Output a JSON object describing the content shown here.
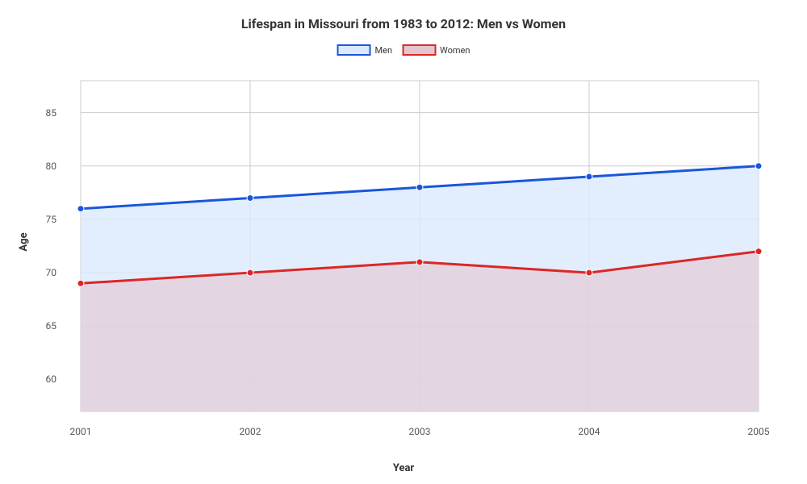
{
  "chart": {
    "type": "line-area",
    "title": "Lifespan in Missouri from 1983 to 2012: Men vs Women",
    "title_fontsize": 16,
    "xlabel": "Year",
    "ylabel": "Age",
    "background_color": "#ffffff",
    "plot_background_color": "#ffffff",
    "grid_color": "#cccccc",
    "tick_fontsize": 12,
    "label_fontsize": 13,
    "x_categories": [
      "2001",
      "2002",
      "2003",
      "2004",
      "2005"
    ],
    "ylim": [
      57,
      88
    ],
    "yticks": [
      60,
      65,
      70,
      75,
      80,
      85
    ],
    "marker_radius": 4,
    "line_width": 3,
    "series": [
      {
        "name": "Men",
        "values": [
          76,
          77,
          78,
          79,
          80
        ],
        "line_color": "#1a56db",
        "fill_color": "#dbeafe",
        "fill_opacity": 0.8
      },
      {
        "name": "Women",
        "values": [
          69,
          70,
          71,
          70,
          72
        ],
        "line_color": "#dc2626",
        "fill_color": "#e4c6ce",
        "fill_opacity": 0.6
      }
    ],
    "legend": {
      "position": "top-center",
      "swatch_border_width": 2
    }
  }
}
